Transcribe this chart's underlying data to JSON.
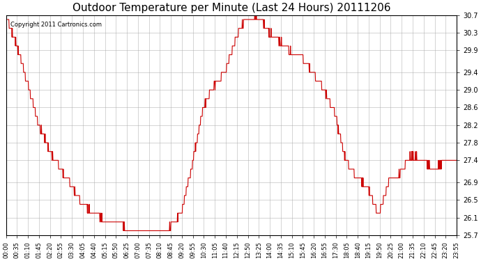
{
  "title": "Outdoor Temperature per Minute (Last 24 Hours) 20111206",
  "copyright_text": "Copyright 2011 Cartronics.com",
  "line_color": "#cc0000",
  "background_color": "#ffffff",
  "grid_color": "#aaaaaa",
  "ylim": [
    25.7,
    30.7
  ],
  "yticks": [
    25.7,
    26.1,
    26.5,
    26.9,
    27.4,
    27.8,
    28.2,
    28.6,
    29.0,
    29.4,
    29.9,
    30.3,
    30.7
  ],
  "xtick_labels": [
    "00:00",
    "00:35",
    "01:10",
    "01:45",
    "02:20",
    "02:55",
    "03:30",
    "04:05",
    "04:40",
    "05:15",
    "05:50",
    "06:25",
    "07:00",
    "07:35",
    "08:10",
    "08:45",
    "09:20",
    "09:55",
    "10:30",
    "11:05",
    "11:40",
    "12:15",
    "12:50",
    "13:25",
    "14:00",
    "14:35",
    "15:10",
    "15:45",
    "16:20",
    "16:55",
    "17:30",
    "18:05",
    "18:40",
    "19:15",
    "19:50",
    "20:25",
    "21:00",
    "21:35",
    "22:10",
    "22:45",
    "23:20",
    "23:55"
  ],
  "key_times_minutes": [
    0,
    35,
    70,
    105,
    140,
    175,
    210,
    245,
    280,
    315,
    350,
    385,
    420,
    455,
    490,
    525,
    560,
    595,
    630,
    665,
    700,
    735,
    770,
    805,
    840,
    875,
    910,
    945,
    980,
    1015,
    1050,
    1085,
    1120,
    1155,
    1190,
    1225,
    1260,
    1295,
    1330,
    1365,
    1400,
    1435
  ],
  "key_values": [
    30.7,
    30.0,
    29.1,
    28.2,
    27.6,
    27.2,
    26.8,
    26.4,
    26.2,
    26.05,
    26.05,
    25.85,
    25.75,
    25.75,
    25.8,
    25.9,
    26.2,
    27.3,
    28.6,
    29.1,
    29.4,
    30.2,
    30.65,
    30.7,
    30.3,
    30.1,
    29.85,
    29.75,
    29.4,
    29.0,
    28.5,
    27.4,
    27.0,
    26.8,
    26.15,
    26.95,
    27.1,
    27.5,
    27.45,
    27.2,
    27.35,
    27.35
  ]
}
